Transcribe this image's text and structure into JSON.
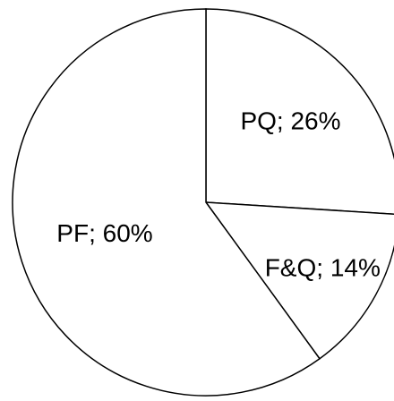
{
  "chart_data": {
    "type": "pie",
    "categories": [
      "PQ",
      "F&Q",
      "PF"
    ],
    "values": [
      26,
      14,
      60
    ],
    "labels": [
      "PQ; 26%",
      "F&Q; 14%",
      "PF; 60%"
    ],
    "colors": {
      "fill": "#ffffff",
      "stroke": "#000000",
      "text": "#000000"
    }
  }
}
